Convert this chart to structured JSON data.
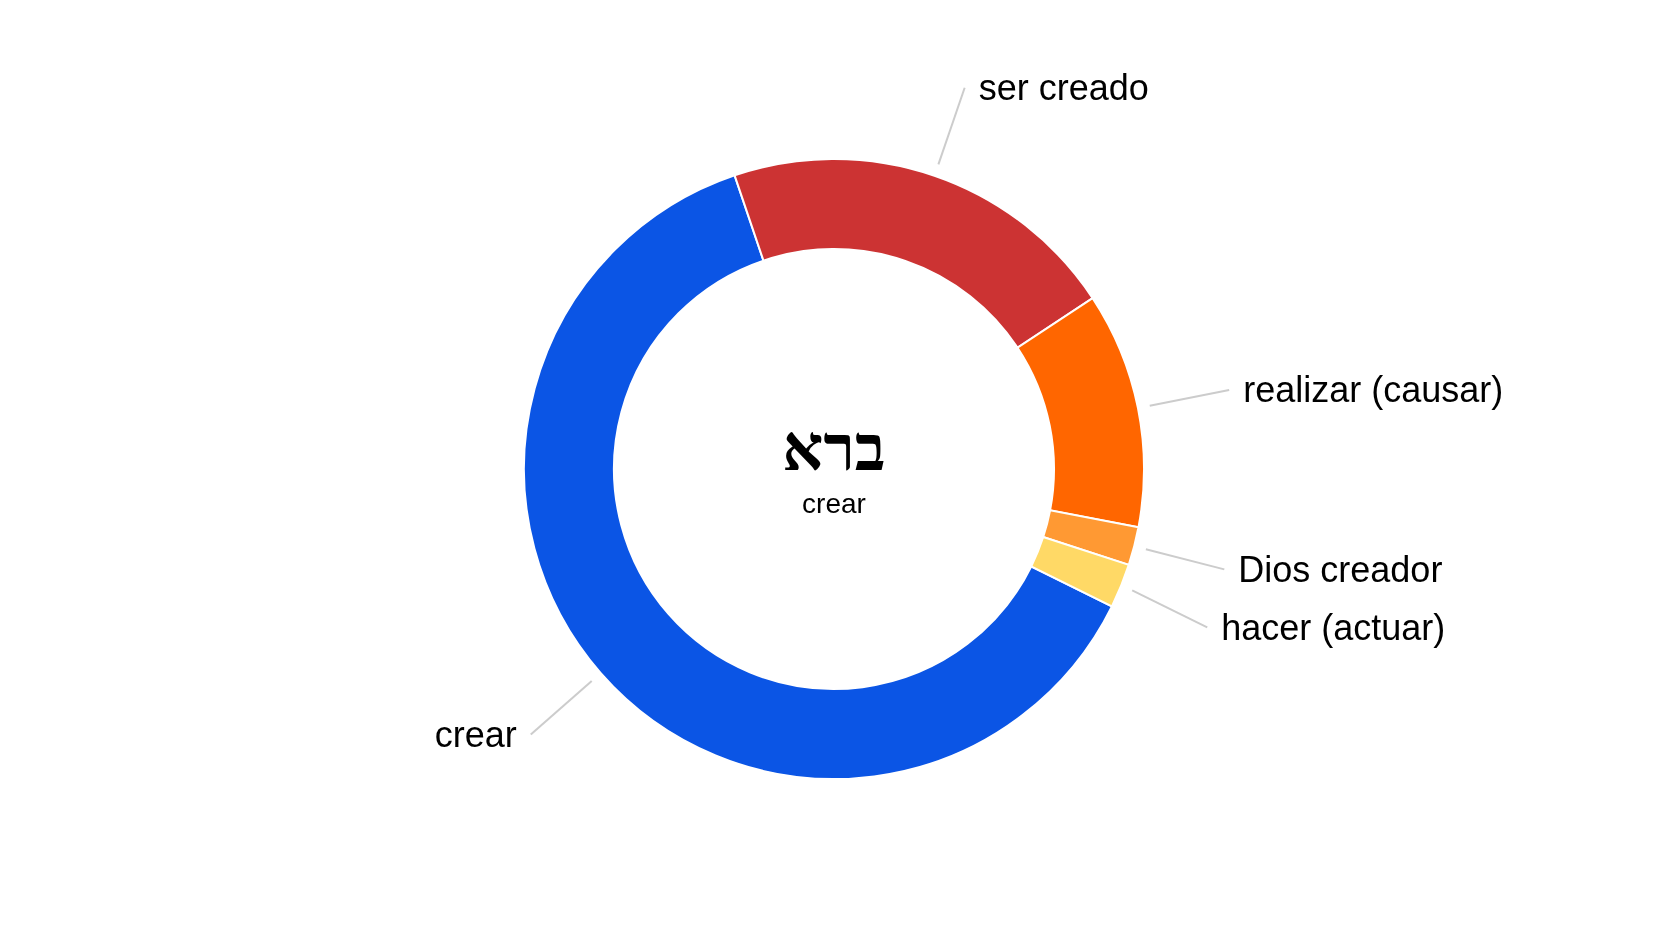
{
  "chart_data": {
    "type": "donut",
    "categories": [
      "crear",
      "ser creado",
      "realizar (causar)",
      "Dios creador",
      "hacer (actuar)"
    ],
    "values": [
      62.5,
      20.9,
      12.3,
      2.0,
      2.3
    ],
    "colors": [
      "#0b55e5",
      "#cc3333",
      "#ff6600",
      "#ff9933",
      "#ffd966"
    ],
    "annotations": [
      "ברא",
      "crear"
    ]
  }
}
